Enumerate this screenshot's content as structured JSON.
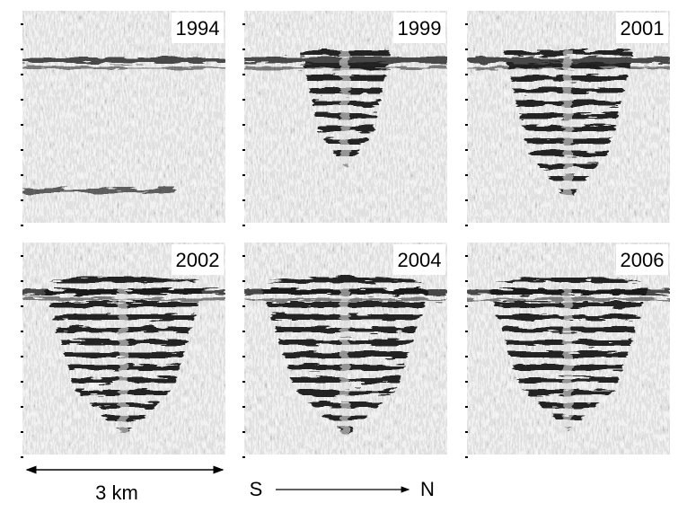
{
  "panels": [
    {
      "label": "1994"
    },
    {
      "label": "1999"
    },
    {
      "label": "2001"
    },
    {
      "label": "2002"
    },
    {
      "label": "2004"
    },
    {
      "label": "2006"
    }
  ],
  "scale_bar": {
    "label": "3 km"
  },
  "direction": {
    "start": "S",
    "end": "N"
  }
}
